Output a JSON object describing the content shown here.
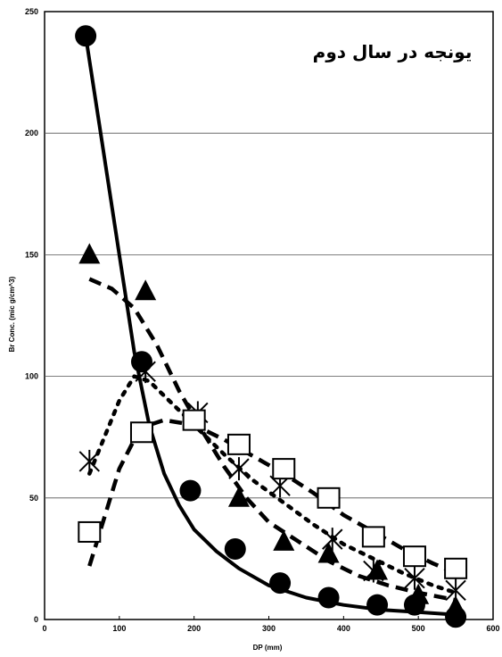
{
  "chart_data": {
    "type": "scatter",
    "title": "",
    "annotation": "یونجه در سال دوم",
    "xlabel": "DP (mm)",
    "ylabel": "Br Conc. (mic g/cm^3)",
    "xlim": [
      0,
      600
    ],
    "ylim": [
      0,
      250
    ],
    "x_ticks": [
      "0",
      "100",
      "200",
      "300",
      "400",
      "500",
      "600"
    ],
    "y_ticks": [
      "0",
      "50",
      "100",
      "150",
      "200",
      "250"
    ],
    "grid": "horizontal",
    "series": [
      {
        "marker": "circle",
        "line": "solid",
        "points": [
          [
            55,
            240
          ],
          [
            130,
            106
          ],
          [
            195,
            53
          ],
          [
            255,
            29
          ],
          [
            315,
            15
          ],
          [
            380,
            9
          ],
          [
            445,
            6
          ],
          [
            495,
            6
          ],
          [
            550,
            1
          ]
        ],
        "fit": [
          [
            55,
            240
          ],
          [
            75,
            200
          ],
          [
            100,
            150
          ],
          [
            120,
            110
          ],
          [
            140,
            80
          ],
          [
            160,
            60
          ],
          [
            180,
            47
          ],
          [
            200,
            37
          ],
          [
            230,
            28
          ],
          [
            260,
            21
          ],
          [
            300,
            14
          ],
          [
            350,
            9
          ],
          [
            400,
            6
          ],
          [
            450,
            4
          ],
          [
            500,
            3
          ],
          [
            550,
            2
          ]
        ]
      },
      {
        "marker": "triangle",
        "line": "dashed",
        "points": [
          [
            60,
            150
          ],
          [
            135,
            135
          ],
          [
            200,
            82
          ],
          [
            260,
            50
          ],
          [
            320,
            32
          ],
          [
            380,
            27
          ],
          [
            445,
            20
          ],
          [
            500,
            10
          ],
          [
            550,
            5
          ]
        ],
        "fit": [
          [
            60,
            140
          ],
          [
            90,
            136
          ],
          [
            120,
            128
          ],
          [
            150,
            113
          ],
          [
            180,
            94
          ],
          [
            210,
            78
          ],
          [
            240,
            63
          ],
          [
            270,
            50
          ],
          [
            300,
            40
          ],
          [
            340,
            32
          ],
          [
            380,
            24
          ],
          [
            420,
            18
          ],
          [
            460,
            14
          ],
          [
            500,
            11
          ],
          [
            550,
            8
          ]
        ]
      },
      {
        "marker": "star",
        "line": "dotted",
        "points": [
          [
            60,
            65
          ],
          [
            135,
            102
          ],
          [
            205,
            85
          ],
          [
            260,
            62
          ],
          [
            315,
            55
          ],
          [
            385,
            33
          ],
          [
            440,
            20
          ],
          [
            495,
            17
          ],
          [
            550,
            12
          ]
        ],
        "fit": [
          [
            60,
            60
          ],
          [
            80,
            75
          ],
          [
            100,
            90
          ],
          [
            120,
            100
          ],
          [
            140,
            98
          ],
          [
            160,
            92
          ],
          [
            200,
            80
          ],
          [
            240,
            68
          ],
          [
            280,
            57
          ],
          [
            320,
            48
          ],
          [
            360,
            39
          ],
          [
            400,
            31
          ],
          [
            440,
            25
          ],
          [
            480,
            19
          ],
          [
            520,
            14
          ],
          [
            550,
            11
          ]
        ]
      },
      {
        "marker": "square",
        "line": "dashed",
        "points": [
          [
            60,
            36
          ],
          [
            130,
            77
          ],
          [
            200,
            82
          ],
          [
            260,
            72
          ],
          [
            320,
            62
          ],
          [
            380,
            50
          ],
          [
            440,
            34
          ],
          [
            495,
            26
          ],
          [
            550,
            21
          ]
        ],
        "fit": [
          [
            60,
            22
          ],
          [
            80,
            42
          ],
          [
            100,
            62
          ],
          [
            120,
            74
          ],
          [
            140,
            80
          ],
          [
            160,
            82
          ],
          [
            200,
            80
          ],
          [
            240,
            74
          ],
          [
            280,
            67
          ],
          [
            320,
            60
          ],
          [
            360,
            52
          ],
          [
            400,
            43
          ],
          [
            440,
            36
          ],
          [
            480,
            29
          ],
          [
            520,
            23
          ],
          [
            550,
            19
          ]
        ]
      }
    ]
  }
}
